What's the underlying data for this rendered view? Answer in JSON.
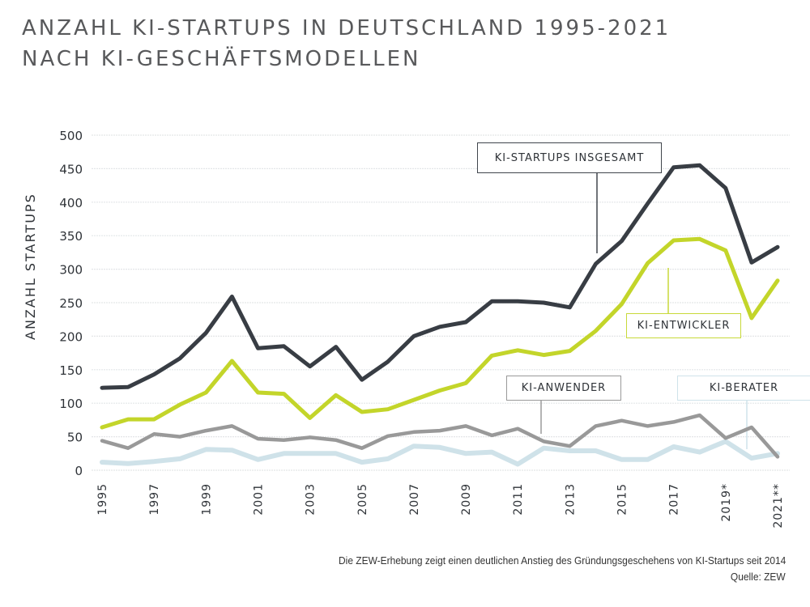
{
  "header": {
    "title_line1": "ANZAHL KI-STARTUPS IN DEUTSCHLAND 1995-2021",
    "title_line2": "NACH KI-GESCHÄFTSMODELLEN"
  },
  "footer": {
    "caption": "Die ZEW-Erhebung zeigt einen deutlichen Anstieg des Gründungsgeschehens von KI-Startups seit 2014",
    "source": "Quelle: ZEW"
  },
  "chart_data": {
    "type": "line",
    "title": "ANZAHL KI-STARTUPS IN DEUTSCHLAND 1995-2021 NACH KI-GESCHÄFTSMODELLEN",
    "xlabel": "",
    "ylabel": "ANZAHL STARTUPS",
    "ylim": [
      0,
      500
    ],
    "yticks": [
      0,
      50,
      100,
      150,
      200,
      250,
      300,
      350,
      400,
      450,
      500
    ],
    "grid": true,
    "x": [
      1995,
      1996,
      1997,
      1998,
      1999,
      2000,
      2001,
      2002,
      2003,
      2004,
      2005,
      2006,
      2007,
      2008,
      2009,
      2010,
      2011,
      2012,
      2013,
      2014,
      2015,
      2016,
      2017,
      2018,
      2019,
      2020,
      2021
    ],
    "xtick_labels": [
      {
        "x": 1995,
        "label": "1995"
      },
      {
        "x": 1997,
        "label": "1997"
      },
      {
        "x": 1999,
        "label": "1999"
      },
      {
        "x": 2001,
        "label": "2001"
      },
      {
        "x": 2003,
        "label": "2003"
      },
      {
        "x": 2005,
        "label": "2005"
      },
      {
        "x": 2007,
        "label": "2007"
      },
      {
        "x": 2009,
        "label": "2009"
      },
      {
        "x": 2011,
        "label": "2011"
      },
      {
        "x": 2013,
        "label": "2013"
      },
      {
        "x": 2015,
        "label": "2015"
      },
      {
        "x": 2017,
        "label": "2017"
      },
      {
        "x": 2019,
        "label": "2019*"
      },
      {
        "x": 2021,
        "label": "2021**"
      }
    ],
    "series": [
      {
        "name": "KI-STARTUPS INSGESAMT",
        "color": "#383d44",
        "values": [
          123,
          124,
          143,
          167,
          205,
          259,
          182,
          185,
          155,
          184,
          135,
          162,
          200,
          214,
          221,
          252,
          252,
          250,
          243,
          308,
          342,
          398,
          452,
          455,
          421,
          310,
          333
        ]
      },
      {
        "name": "KI-ENTWICKLER",
        "color": "#c3d52a",
        "values": [
          64,
          76,
          76,
          98,
          116,
          163,
          116,
          114,
          78,
          112,
          87,
          91,
          105,
          119,
          130,
          171,
          179,
          172,
          178,
          208,
          248,
          309,
          343,
          345,
          328,
          227,
          283
        ]
      },
      {
        "name": "KI-ANWENDER",
        "color": "#999999",
        "values": [
          44,
          33,
          54,
          50,
          59,
          66,
          47,
          45,
          49,
          45,
          33,
          51,
          57,
          59,
          66,
          52,
          62,
          43,
          36,
          66,
          74,
          66,
          72,
          82,
          48,
          64,
          20
        ]
      },
      {
        "name": "KI-BERATER",
        "color": "#cfe2e9",
        "values": [
          12,
          10,
          13,
          17,
          31,
          30,
          16,
          25,
          25,
          25,
          12,
          17,
          36,
          34,
          25,
          27,
          9,
          33,
          29,
          29,
          16,
          16,
          35,
          27,
          43,
          18,
          25
        ]
      }
    ],
    "annotations": [
      {
        "series": "KI-STARTUPS INSGESAMT",
        "label": "KI-STARTUPS INSGESAMT",
        "points_to_x": 2014
      },
      {
        "series": "KI-ENTWICKLER",
        "label": "KI-ENTWICKLER",
        "points_to_x": 2017
      },
      {
        "series": "KI-ANWENDER",
        "label": "KI-ANWENDER",
        "points_to_x": 2012
      },
      {
        "series": "KI-BERATER",
        "label": "KI-BERATER",
        "points_to_x": 2020
      }
    ]
  }
}
